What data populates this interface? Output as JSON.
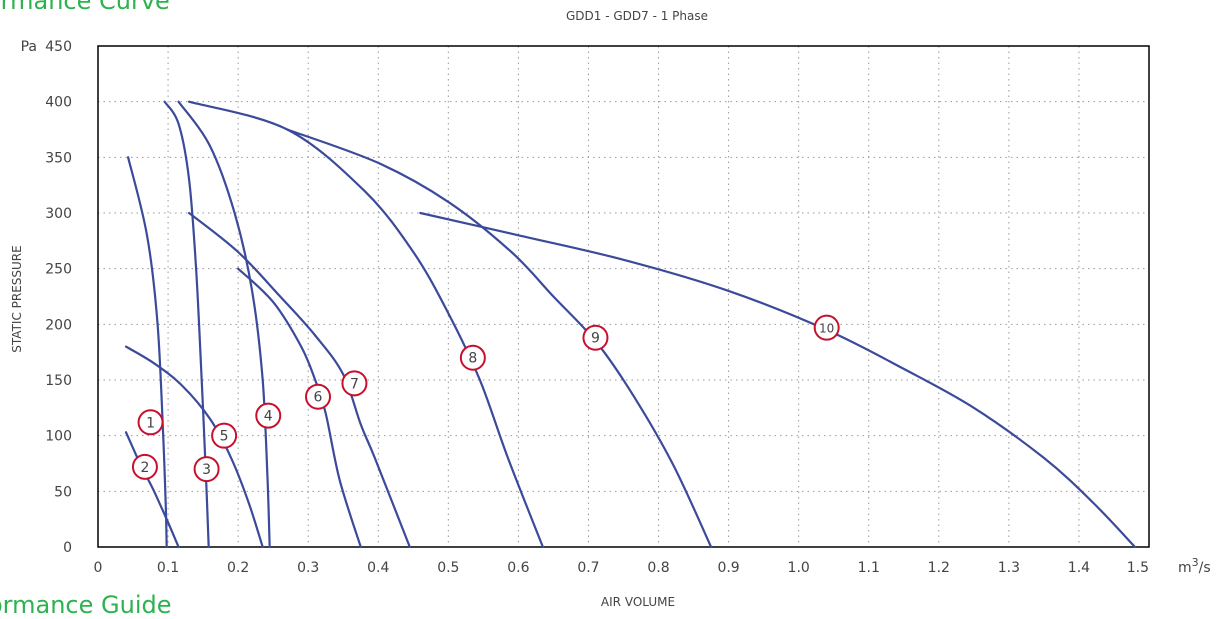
{
  "headings": {
    "top": "ormance Curve",
    "bottom": "ormance Guide"
  },
  "colors": {
    "curve": "#3b4a9a",
    "marker_ring": "#c8102e",
    "heading": "#2eb14f",
    "grid": "#999999",
    "axis": "#000000"
  },
  "chart_data": {
    "type": "line",
    "title": "GDD1 - GDD7 - 1 Phase",
    "xlabel": "AIR VOLUME",
    "ylabel": "STATIC PRESSURE",
    "x_unit": "m3/s",
    "y_unit": "Pa",
    "xlim": [
      0,
      1.5
    ],
    "ylim": [
      0,
      450
    ],
    "x_ticks": [
      "0",
      "0.1",
      "0.2",
      "0.3",
      "0.4",
      "0.5",
      "0.6",
      "0.7",
      "0.8",
      "0.9",
      "1.0",
      "1.1",
      "1.2",
      "1.3",
      "1.4",
      "1.5"
    ],
    "y_ticks": [
      "0",
      "50",
      "100",
      "150",
      "200",
      "250",
      "300",
      "350",
      "400",
      "450"
    ],
    "grid": true,
    "series": [
      {
        "name": "1",
        "label_at": [
          0.075,
          112
        ],
        "x": [
          0.043,
          0.07,
          0.085,
          0.093,
          0.097,
          0.098
        ],
        "y": [
          350,
          280,
          200,
          100,
          30,
          0
        ]
      },
      {
        "name": "2",
        "label_at": [
          0.067,
          72
        ],
        "x": [
          0.04,
          0.06,
          0.08,
          0.1,
          0.115
        ],
        "y": [
          103,
          75,
          50,
          22,
          0
        ]
      },
      {
        "name": "3",
        "label_at": [
          0.155,
          70
        ],
        "x": [
          0.095,
          0.115,
          0.13,
          0.14,
          0.148,
          0.155,
          0.158
        ],
        "y": [
          400,
          380,
          330,
          250,
          150,
          50,
          0
        ]
      },
      {
        "name": "4",
        "label_at": [
          0.243,
          118
        ],
        "x": [
          0.115,
          0.16,
          0.195,
          0.22,
          0.235,
          0.242,
          0.245
        ],
        "y": [
          400,
          360,
          300,
          230,
          150,
          60,
          0
        ]
      },
      {
        "name": "5",
        "label_at": [
          0.18,
          100
        ],
        "x": [
          0.04,
          0.08,
          0.12,
          0.16,
          0.19,
          0.215,
          0.235
        ],
        "y": [
          180,
          165,
          145,
          115,
          80,
          40,
          0
        ]
      },
      {
        "name": "6",
        "label_at": [
          0.314,
          135
        ],
        "x": [
          0.2,
          0.25,
          0.29,
          0.31,
          0.325,
          0.345,
          0.375
        ],
        "y": [
          250,
          220,
          180,
          150,
          120,
          60,
          0
        ]
      },
      {
        "name": "7",
        "label_at": [
          0.366,
          147
        ],
        "x": [
          0.13,
          0.2,
          0.26,
          0.31,
          0.35,
          0.375,
          0.395,
          0.445
        ],
        "y": [
          300,
          265,
          225,
          190,
          155,
          110,
          80,
          0
        ]
      },
      {
        "name": "8",
        "label_at": [
          0.535,
          170
        ],
        "x": [
          0.13,
          0.27,
          0.38,
          0.45,
          0.5,
          0.545,
          0.585,
          0.635
        ],
        "y": [
          400,
          375,
          320,
          265,
          210,
          150,
          80,
          0
        ]
      },
      {
        "name": "9",
        "label_at": [
          0.71,
          188
        ],
        "x": [
          0.27,
          0.4,
          0.5,
          0.59,
          0.65,
          0.71,
          0.76,
          0.82,
          0.875
        ],
        "y": [
          375,
          345,
          310,
          265,
          225,
          185,
          140,
          75,
          0
        ]
      },
      {
        "name": "10",
        "label_at": [
          1.04,
          197
        ],
        "x": [
          0.46,
          0.6,
          0.75,
          0.9,
          1.04,
          1.15,
          1.25,
          1.35,
          1.42,
          1.48
        ],
        "y": [
          300,
          280,
          258,
          230,
          195,
          160,
          125,
          80,
          40,
          0
        ]
      }
    ]
  }
}
